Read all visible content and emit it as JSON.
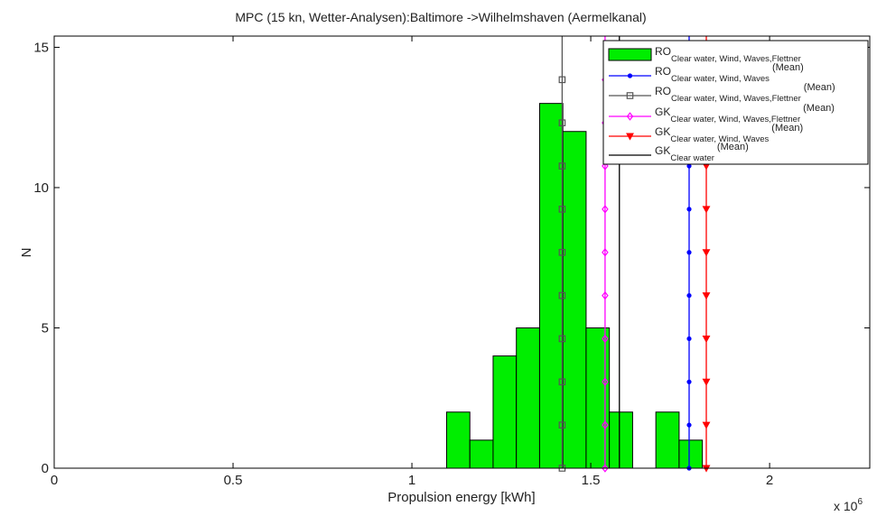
{
  "chart_data": {
    "type": "bar",
    "title": "MPC (15 kn, Wetter-Analysen):Baltimore ->Wilhelmshaven (Aermelkanal)",
    "xlabel": "Propulsion energy [kWh]",
    "ylabel": "N",
    "x_multiplier": "x 10",
    "x_multiplier_exp": "6",
    "xlim": [
      0,
      2.28
    ],
    "ylim": [
      0,
      15.4
    ],
    "xticks": [
      0,
      0.5,
      1,
      1.5,
      2
    ],
    "xtick_labels": [
      "0",
      "0.5",
      "1",
      "1.5",
      "2"
    ],
    "yticks": [
      0,
      5,
      10,
      15
    ],
    "ytick_labels": [
      "0",
      "5",
      "10",
      "15"
    ],
    "histogram": {
      "color": "#00ee00",
      "bin_width": 0.065,
      "bins": [
        {
          "x": 1.097,
          "count": 2
        },
        {
          "x": 1.162,
          "count": 1
        },
        {
          "x": 1.227,
          "count": 4
        },
        {
          "x": 1.292,
          "count": 5
        },
        {
          "x": 1.357,
          "count": 13
        },
        {
          "x": 1.422,
          "count": 12
        },
        {
          "x": 1.487,
          "count": 5
        },
        {
          "x": 1.552,
          "count": 2
        },
        {
          "x": 1.682,
          "count": 2
        },
        {
          "x": 1.747,
          "count": 1
        }
      ]
    },
    "mean_lines": [
      {
        "x": 1.775,
        "color": "#0000ff",
        "marker": "dot"
      },
      {
        "x": 1.42,
        "color": "#555555",
        "marker": "square"
      },
      {
        "x": 1.54,
        "color": "#ff00ff",
        "marker": "diamond"
      },
      {
        "x": 1.823,
        "color": "#ff0000",
        "marker": "triangle-down"
      },
      {
        "x": 1.58,
        "color": "#000000",
        "marker": "none"
      }
    ],
    "marker_y": [
      0,
      1.538,
      3.077,
      4.615,
      6.154,
      7.692,
      9.231,
      10.769,
      12.308,
      13.846
    ],
    "legend": {
      "placement": "top-right",
      "entries": [
        {
          "base": "RO",
          "sub": "Clear water, Wind, Waves,Flettner",
          "sup": "",
          "color": "#00ee00",
          "marker": "patch"
        },
        {
          "base": "RO",
          "sub": "Clear water, Wind, Waves",
          "sup": "(Mean)",
          "color": "#0000ff",
          "marker": "dot"
        },
        {
          "base": "RO",
          "sub": "Clear water, Wind, Waves,Flettner",
          "sup": "(Mean)",
          "color": "#555555",
          "marker": "square"
        },
        {
          "base": "GK",
          "sub": "Clear water, Wind, Waves,Flettner",
          "sup": "(Mean)",
          "color": "#ff00ff",
          "marker": "diamond"
        },
        {
          "base": "GK",
          "sub": "Clear water, Wind, Waves",
          "sup": "(Mean)",
          "color": "#ff0000",
          "marker": "triangle-down"
        },
        {
          "base": "GK",
          "sub": "Clear water",
          "sup": "(Mean)",
          "color": "#000000",
          "marker": "none"
        }
      ]
    }
  }
}
